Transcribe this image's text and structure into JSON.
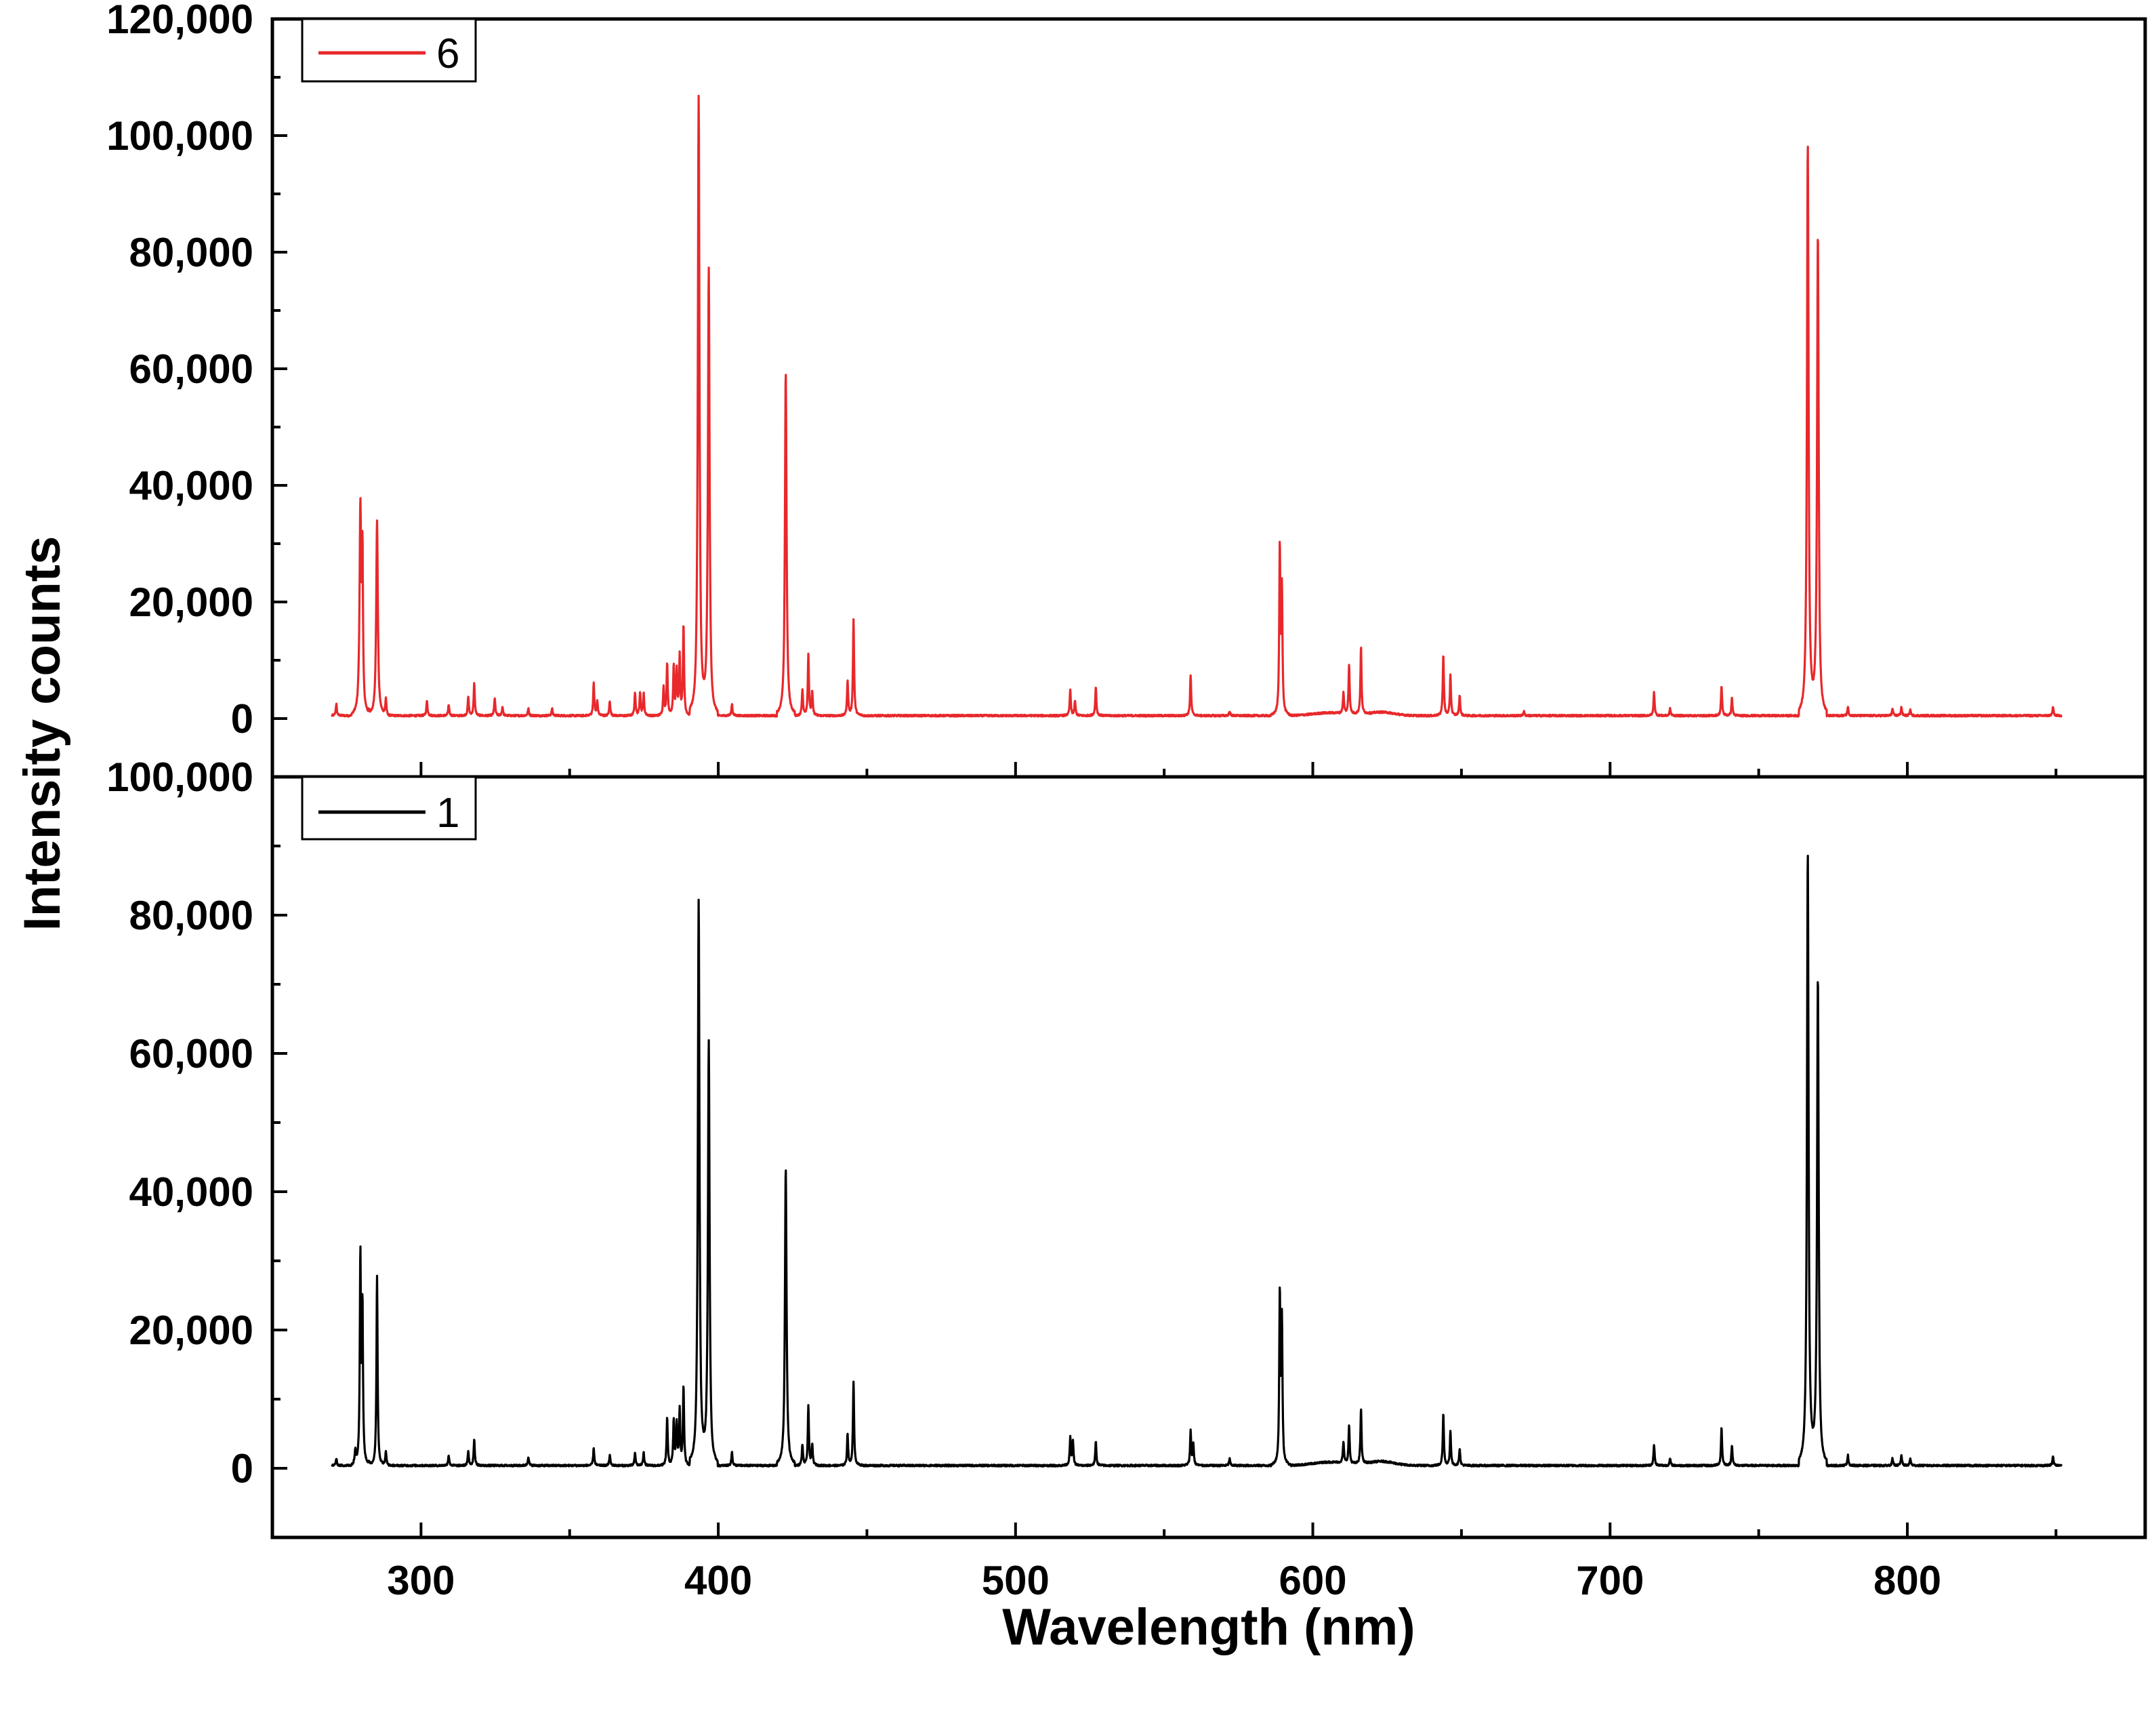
{
  "chart_data": [
    {
      "type": "line",
      "panel": "top",
      "series": [
        {
          "name": "6",
          "color": "#e8282b"
        }
      ],
      "xlim": [
        250,
        880
      ],
      "ylim": [
        -10000,
        120000
      ],
      "xticks": [
        300,
        400,
        500,
        600,
        700,
        800
      ],
      "yticks": [
        0,
        20000,
        40000,
        60000,
        80000,
        100000,
        120000
      ],
      "ytick_labels": [
        "0",
        "20,000",
        "40,000",
        "60,000",
        "80,000",
        "100,000",
        "120,000"
      ],
      "baseline": 500,
      "noise": 300,
      "x_range": [
        270,
        852
      ],
      "legend_position": "top-left",
      "peaks": [
        [
          271.5,
          2000
        ],
        [
          279.6,
          35000
        ],
        [
          280.3,
          26000
        ],
        [
          285.2,
          33500
        ],
        [
          288.2,
          2800
        ],
        [
          302,
          2500
        ],
        [
          309.3,
          1800
        ],
        [
          315.9,
          3200
        ],
        [
          317.9,
          5500
        ],
        [
          324.8,
          3000
        ],
        [
          327.4,
          1500
        ],
        [
          336.1,
          1200
        ],
        [
          344.1,
          1200
        ],
        [
          358.1,
          5500
        ],
        [
          359.3,
          2500
        ],
        [
          363.5,
          2500
        ],
        [
          372.0,
          4000
        ],
        [
          373.7,
          4000
        ],
        [
          374.9,
          3800
        ],
        [
          381.6,
          5000
        ],
        [
          382.8,
          9000
        ],
        [
          385.0,
          8500
        ],
        [
          386.0,
          7500
        ],
        [
          387.0,
          10000
        ],
        [
          388.3,
          15500
        ],
        [
          393.4,
          106500
        ],
        [
          396.8,
          77000
        ],
        [
          404.6,
          2000
        ],
        [
          422.7,
          59000
        ],
        [
          428.3,
          4500
        ],
        [
          430.3,
          10500
        ],
        [
          431.6,
          4000
        ],
        [
          443.5,
          6000
        ],
        [
          445.5,
          16500
        ],
        [
          518.4,
          4500
        ],
        [
          520.0,
          2500
        ],
        [
          527.0,
          5000
        ],
        [
          558.9,
          7000
        ],
        [
          572.0,
          800
        ],
        [
          588.9,
          28500
        ],
        [
          589.6,
          21000
        ],
        [
          610.3,
          3500
        ],
        [
          612.2,
          8500
        ],
        [
          616.2,
          11500
        ],
        [
          643.9,
          10500
        ],
        [
          646.3,
          7000
        ],
        [
          649.4,
          3500
        ],
        [
          671,
          700
        ],
        [
          714.8,
          4000
        ],
        [
          720.2,
          1200
        ],
        [
          737.5,
          5000
        ],
        [
          741.0,
          3000
        ],
        [
          766.5,
          98500
        ],
        [
          769.9,
          83000
        ],
        [
          780.0,
          1500
        ],
        [
          795,
          1200
        ],
        [
          798,
          1500
        ],
        [
          801,
          1000
        ],
        [
          849,
          1500
        ]
      ]
    },
    {
      "type": "line",
      "panel": "bottom",
      "series": [
        {
          "name": "1",
          "color": "#000000"
        }
      ],
      "xlim": [
        250,
        880
      ],
      "ylim": [
        -10000,
        100000
      ],
      "xticks": [
        300,
        400,
        500,
        600,
        700,
        800
      ],
      "xtick_labels": [
        "300",
        "400",
        "500",
        "600",
        "700",
        "800"
      ],
      "yticks": [
        0,
        20000,
        40000,
        60000,
        80000,
        100000
      ],
      "ytick_labels": [
        "0",
        "20,000",
        "40,000",
        "60,000",
        "80,000",
        "100,000"
      ],
      "baseline": 400,
      "noise": 250,
      "x_range": [
        270,
        852
      ],
      "legend_position": "top-left",
      "peaks": [
        [
          271.5,
          1000
        ],
        [
          277.9,
          2000
        ],
        [
          279.6,
          30000
        ],
        [
          280.3,
          22500
        ],
        [
          285.2,
          27500
        ],
        [
          288.2,
          2000
        ],
        [
          309.3,
          1500
        ],
        [
          315.9,
          2000
        ],
        [
          317.9,
          3800
        ],
        [
          336.1,
          1300
        ],
        [
          358.1,
          2500
        ],
        [
          363.5,
          1500
        ],
        [
          372.0,
          1800
        ],
        [
          374.9,
          2000
        ],
        [
          382.8,
          7000
        ],
        [
          385.0,
          6500
        ],
        [
          386.0,
          6000
        ],
        [
          387.0,
          8000
        ],
        [
          388.3,
          11500
        ],
        [
          393.4,
          82000
        ],
        [
          396.8,
          61500
        ],
        [
          404.6,
          2000
        ],
        [
          422.7,
          43000
        ],
        [
          428.3,
          3000
        ],
        [
          430.3,
          8500
        ],
        [
          431.6,
          3000
        ],
        [
          443.5,
          4500
        ],
        [
          445.5,
          12000
        ],
        [
          518.4,
          4000
        ],
        [
          519.3,
          3500
        ],
        [
          527.0,
          3500
        ],
        [
          558.9,
          5000
        ],
        [
          559.8,
          3000
        ],
        [
          572.0,
          1000
        ],
        [
          588.9,
          24500
        ],
        [
          589.6,
          20500
        ],
        [
          610.3,
          3000
        ],
        [
          612.2,
          5500
        ],
        [
          616.2,
          8000
        ],
        [
          643.9,
          7500
        ],
        [
          646.3,
          5000
        ],
        [
          649.4,
          2500
        ],
        [
          714.8,
          3000
        ],
        [
          720.2,
          1000
        ],
        [
          737.5,
          5500
        ],
        [
          741.0,
          3000
        ],
        [
          766.5,
          89000
        ],
        [
          769.9,
          71000
        ],
        [
          780.0,
          1500
        ],
        [
          795,
          1000
        ],
        [
          798,
          1500
        ],
        [
          801,
          1000
        ],
        [
          849,
          1300
        ]
      ]
    }
  ],
  "axes": {
    "xlabel": "Wavelength (nm)",
    "ylabel": "Intensity counts"
  },
  "legend": {
    "top_label": "6",
    "bottom_label": "1"
  }
}
